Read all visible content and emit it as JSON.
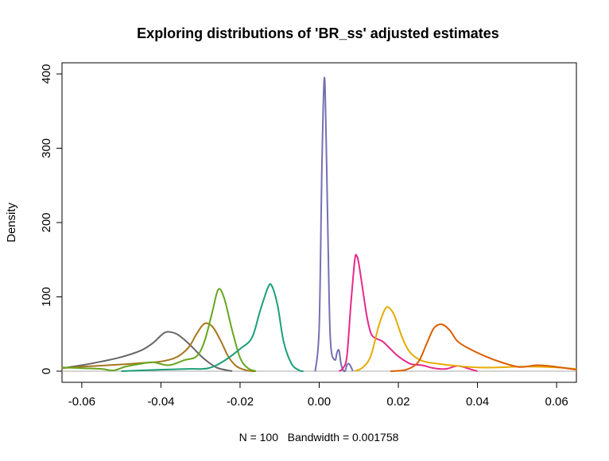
{
  "chart_data": {
    "type": "line",
    "title": "Exploring distributions of 'BR_ss' adjusted estimates",
    "xlabel": "N = 100   Bandwidth = 0.001758",
    "ylabel": "Density",
    "xlim": [
      -0.065,
      0.065
    ],
    "ylim": [
      -15,
      415
    ],
    "x_ticks": [
      -0.06,
      -0.04,
      -0.02,
      0.0,
      0.02,
      0.04,
      0.06
    ],
    "x_tick_labels": [
      "-0.06",
      "-0.04",
      "-0.02",
      "0.00",
      "0.02",
      "0.04",
      "0.06"
    ],
    "y_ticks": [
      0,
      100,
      200,
      300,
      400
    ],
    "y_tick_labels": [
      "0",
      "100",
      "200",
      "300",
      "400"
    ],
    "grid": false,
    "legend": "none",
    "series": [
      {
        "color": "#666666",
        "x": [
          -0.065,
          -0.06,
          -0.055,
          -0.05,
          -0.045,
          -0.042,
          -0.04,
          -0.039,
          -0.038,
          -0.036,
          -0.034,
          -0.032,
          -0.03,
          -0.028,
          -0.026,
          -0.024,
          -0.022
        ],
        "values": [
          4,
          8,
          13,
          19,
          28,
          38,
          48,
          52,
          53,
          50,
          42,
          32,
          21,
          12,
          5,
          2,
          0
        ]
      },
      {
        "color": "#A6761D",
        "x": [
          -0.065,
          -0.06,
          -0.05,
          -0.045,
          -0.04,
          -0.036,
          -0.033,
          -0.031,
          -0.029,
          -0.027,
          -0.025,
          -0.023,
          -0.021,
          -0.019,
          -0.017,
          -0.016
        ],
        "values": [
          4,
          6,
          9,
          11,
          13,
          19,
          32,
          50,
          64,
          60,
          42,
          20,
          7,
          2,
          0,
          0
        ]
      },
      {
        "color": "#66A61E",
        "x": [
          -0.065,
          -0.06,
          -0.055,
          -0.052,
          -0.049,
          -0.045,
          -0.042,
          -0.038,
          -0.034,
          -0.031,
          -0.029,
          -0.027,
          -0.0255,
          -0.024,
          -0.022,
          -0.02,
          -0.018,
          -0.016
        ],
        "values": [
          5,
          4,
          3,
          1,
          6,
          10,
          12,
          8,
          15,
          20,
          40,
          80,
          110,
          98,
          55,
          18,
          4,
          0
        ]
      },
      {
        "color": "#1B9E77",
        "x": [
          -0.05,
          -0.04,
          -0.033,
          -0.028,
          -0.024,
          -0.02,
          -0.017,
          -0.015,
          -0.013,
          -0.012,
          -0.0105,
          -0.009,
          -0.007,
          -0.005,
          -0.004
        ],
        "values": [
          0,
          2,
          3,
          4,
          14,
          30,
          45,
          80,
          112,
          115,
          88,
          40,
          10,
          1,
          0
        ]
      },
      {
        "color": "#7570B3",
        "x": [
          -0.001,
          0.0,
          0.0007,
          0.0013,
          0.0018,
          0.0025,
          0.003,
          0.004,
          0.0045,
          0.005,
          0.0055,
          0.006,
          0.0065,
          0.007,
          0.0075,
          0.008,
          0.0085
        ],
        "values": [
          0,
          60,
          280,
          395,
          300,
          100,
          30,
          15,
          25,
          28,
          10,
          2,
          0,
          8,
          10,
          6,
          0
        ]
      },
      {
        "color": "#E7298A",
        "x": [
          0.005,
          0.006,
          0.007,
          0.008,
          0.009,
          0.0095,
          0.01,
          0.011,
          0.012,
          0.013,
          0.014,
          0.016,
          0.018,
          0.02,
          0.023,
          0.026,
          0.029,
          0.032,
          0.035,
          0.038,
          0.04
        ],
        "values": [
          0,
          4,
          20,
          90,
          150,
          155,
          145,
          110,
          75,
          52,
          45,
          40,
          30,
          20,
          10,
          8,
          4,
          3,
          7,
          3,
          0
        ]
      },
      {
        "color": "#E6AB02",
        "x": [
          0.009,
          0.011,
          0.013,
          0.015,
          0.0165,
          0.0175,
          0.019,
          0.021,
          0.023,
          0.026,
          0.03,
          0.035,
          0.04,
          0.045,
          0.05,
          0.055,
          0.06,
          0.065
        ],
        "values": [
          0,
          5,
          20,
          60,
          82,
          86,
          75,
          45,
          25,
          14,
          10,
          7,
          5,
          5,
          6,
          6,
          5,
          3
        ]
      },
      {
        "color": "#D95F02",
        "x": [
          0.018,
          0.022,
          0.025,
          0.027,
          0.029,
          0.031,
          0.033,
          0.035,
          0.038,
          0.042,
          0.046,
          0.05,
          0.052,
          0.055,
          0.058,
          0.061,
          0.065
        ],
        "values": [
          0,
          2,
          12,
          35,
          58,
          63,
          55,
          40,
          30,
          20,
          12,
          6,
          6,
          8,
          7,
          5,
          2
        ]
      }
    ]
  }
}
